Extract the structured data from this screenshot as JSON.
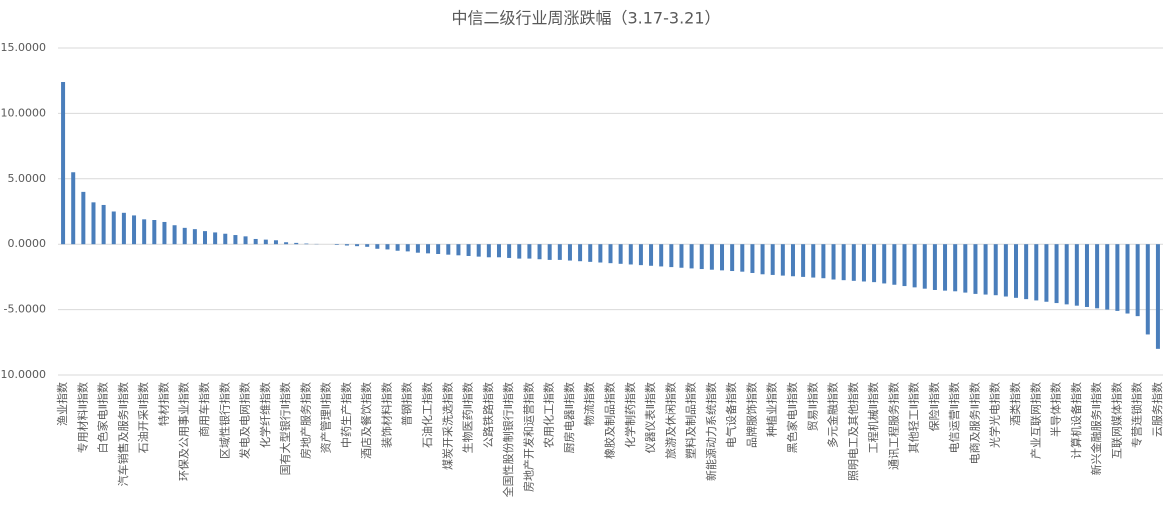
{
  "chart_data": {
    "type": "bar",
    "title": "中信二级行业周涨跌幅（3.17-3.21）",
    "categories": [
      "渔业指数",
      null,
      "专用材料Ⅱ指数",
      null,
      "白色家电Ⅱ指数",
      null,
      "汽车销售及服务Ⅱ指数",
      null,
      "石油开采Ⅱ指数",
      null,
      "特材指数",
      null,
      "环保及公用事业指数",
      null,
      "商用车指数",
      null,
      "区域性银行指数",
      null,
      "发电及电网指数",
      null,
      "化学纤维指数",
      null,
      "国有大型银行Ⅱ指数",
      null,
      "房地产服务指数",
      null,
      "资产管理Ⅱ指数",
      null,
      "中药生产指数",
      null,
      "酒店及餐饮指数",
      null,
      "装饰材料指数",
      null,
      "普钢指数",
      null,
      "石油化工指数",
      null,
      "煤炭开采洗选指数",
      null,
      "生物医药Ⅱ指数",
      null,
      "公路铁路指数",
      null,
      "全国性股份制银行Ⅱ指数",
      null,
      "房地产开发和运营指数",
      null,
      "农用化工指数",
      null,
      "厨房电器Ⅱ指数",
      null,
      "物流指数",
      null,
      "橡胶及制品指数",
      null,
      "化学制药指数",
      null,
      "仪器仪表Ⅱ指数",
      null,
      "旅游及休闲指数",
      null,
      "塑料及制品指数",
      null,
      "新能源动力系统指数",
      null,
      "电气设备指数",
      null,
      "品牌服饰指数",
      null,
      "种植业指数",
      null,
      "黑色家电Ⅱ指数",
      null,
      "贸易Ⅱ指数",
      null,
      "多元金融指数",
      null,
      "照明电工及其他指数",
      null,
      "工程机械Ⅱ指数",
      null,
      "通讯工程服务指数",
      null,
      "其他轻工Ⅱ指数",
      null,
      "保险Ⅱ指数",
      null,
      "电信运营Ⅱ指数",
      null,
      "电商及服务Ⅱ指数",
      null,
      "光学光电指数",
      null,
      "酒类指数",
      null,
      "产业互联网指数",
      null,
      "半导体指数",
      null,
      "计算机设备指数",
      null,
      "新兴金融服务Ⅱ指数",
      null,
      "互联网媒体指数",
      null,
      "专营连锁指数",
      null,
      "云服务指数"
    ],
    "values": [
      12.4,
      5.5,
      4.0,
      3.2,
      3.0,
      2.5,
      2.4,
      2.2,
      1.9,
      1.85,
      1.7,
      1.45,
      1.25,
      1.15,
      1.0,
      0.9,
      0.8,
      0.7,
      0.6,
      0.4,
      0.35,
      0.3,
      0.15,
      0.1,
      0.05,
      0.02,
      0.0,
      -0.05,
      -0.1,
      -0.15,
      -0.2,
      -0.35,
      -0.4,
      -0.5,
      -0.55,
      -0.65,
      -0.7,
      -0.75,
      -0.8,
      -0.85,
      -0.9,
      -0.95,
      -1.0,
      -1.0,
      -1.05,
      -1.1,
      -1.1,
      -1.15,
      -1.2,
      -1.2,
      -1.25,
      -1.3,
      -1.35,
      -1.4,
      -1.45,
      -1.5,
      -1.55,
      -1.6,
      -1.65,
      -1.7,
      -1.75,
      -1.8,
      -1.85,
      -1.9,
      -1.95,
      -2.0,
      -2.05,
      -2.1,
      -2.2,
      -2.3,
      -2.35,
      -2.4,
      -2.45,
      -2.5,
      -2.55,
      -2.6,
      -2.7,
      -2.75,
      -2.8,
      -2.85,
      -2.9,
      -3.0,
      -3.1,
      -3.2,
      -3.3,
      -3.4,
      -3.5,
      -3.55,
      -3.6,
      -3.7,
      -3.8,
      -3.85,
      -3.9,
      -4.0,
      -4.1,
      -4.2,
      -4.3,
      -4.4,
      -4.5,
      -4.6,
      -4.7,
      -4.8,
      -4.9,
      -5.0,
      -5.1,
      -5.3,
      -5.5,
      -6.9,
      -8.0
    ],
    "color": "#4a7ebb",
    "ylim": [
      -10,
      15
    ],
    "yticks": [
      {
        "value": -10,
        "label": "-10.0000"
      },
      {
        "value": -5,
        "label": "-5.0000"
      },
      {
        "value": 0,
        "label": "0.0000"
      },
      {
        "value": 5,
        "label": "5.0000"
      },
      {
        "value": 10,
        "label": "10.0000"
      },
      {
        "value": 15,
        "label": "15.0000"
      }
    ],
    "grid": true
  }
}
